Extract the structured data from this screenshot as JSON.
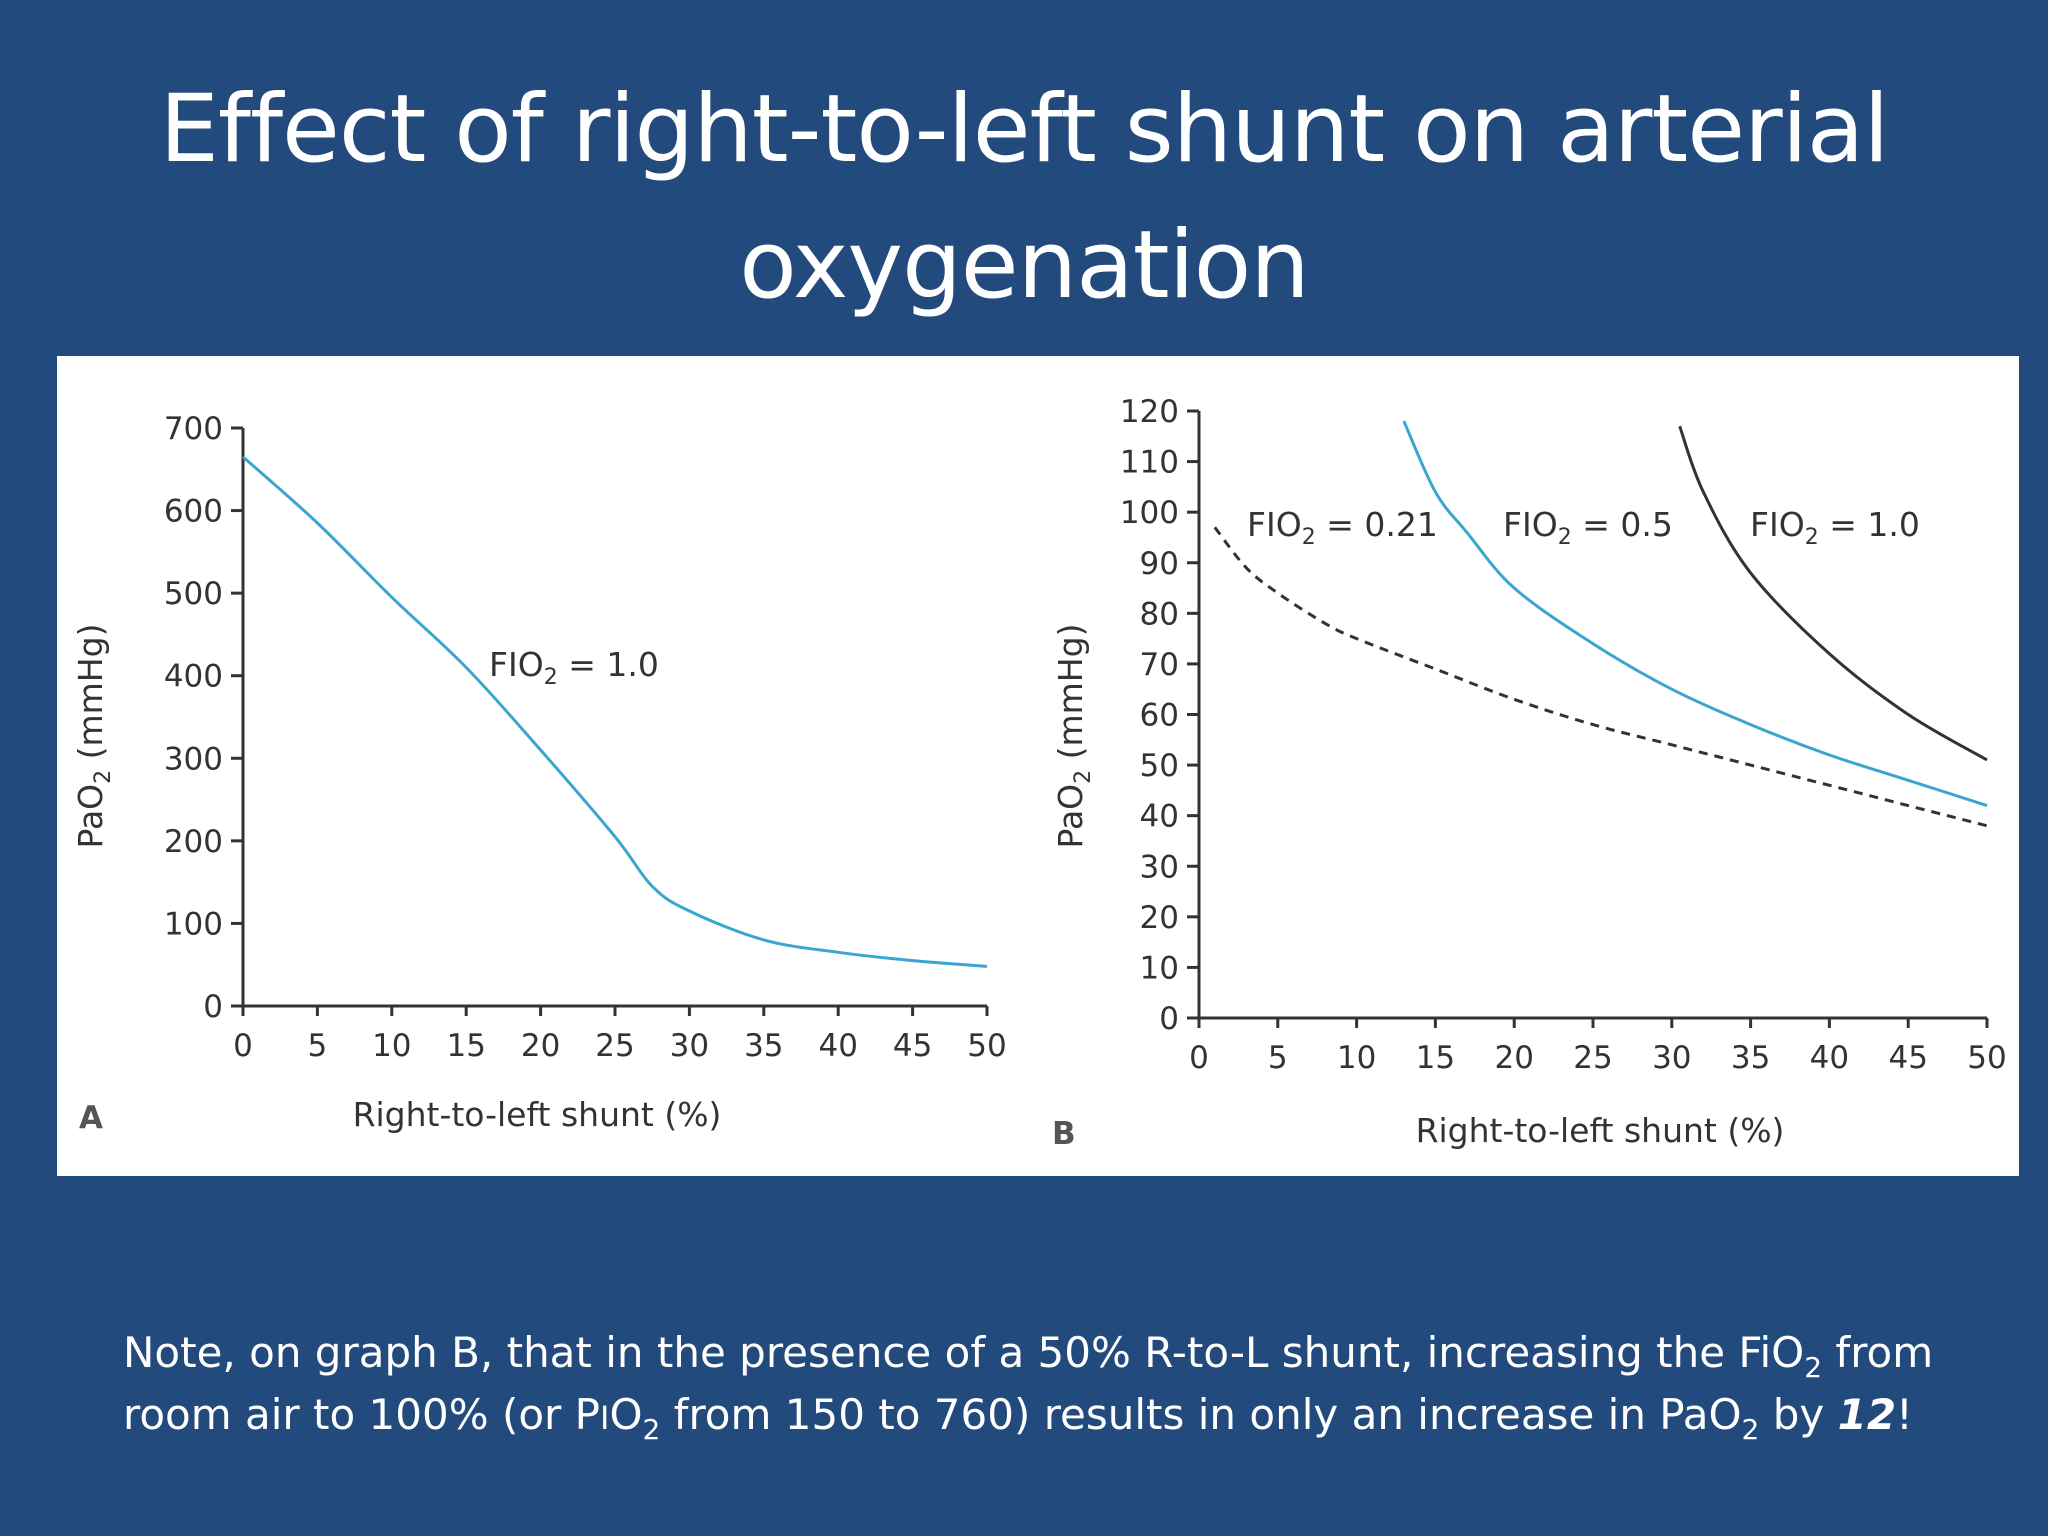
{
  "slide": {
    "title_line1": "Effect of right-to-left shunt on arterial",
    "title_line2": "oxygenation"
  },
  "note": {
    "line1_a": "Note, on graph B, that in the presence of a 50% R-to-L shunt, increasing the FiO",
    "line1_sub": "2",
    "line1_b": " from",
    "line2_a": "room air to 100% (or P",
    "line2_sc": "I",
    "line2_b": "O",
    "line2_sub": "2",
    "line2_c": " from 150 to 760) results in only an increase in PaO",
    "line2_sub2": "2",
    "line2_d": " by ",
    "line2_bold": "12",
    "line2_e": "!"
  },
  "colors": {
    "background": "#224a7c",
    "curve_blue": "#3aa6cf",
    "curve_black": "#333333",
    "axis": "#333333"
  },
  "chart_data": [
    {
      "panel": "A",
      "type": "line",
      "xlabel": "Right-to-left shunt (%)",
      "ylabel": "PaO2 (mmHg)",
      "ylabel_main": "PaO",
      "ylabel_sub": "2",
      "ylabel_unit": " (mmHg)",
      "xlim": [
        0,
        50
      ],
      "ylim": [
        0,
        700
      ],
      "xticks": [
        "0",
        "5",
        "10",
        "15",
        "20",
        "25",
        "30",
        "35",
        "40",
        "45",
        "50"
      ],
      "yticks": [
        "0",
        "100",
        "200",
        "300",
        "400",
        "500",
        "600",
        "700"
      ],
      "grid": false,
      "series": [
        {
          "label_main": "FIO",
          "label_sub": "2",
          "label_rest": " = 1.0",
          "style": "solid",
          "color": "#3aa6cf",
          "x": [
            0,
            5,
            10,
            15,
            20,
            25,
            27.5,
            30,
            35,
            40,
            45,
            50
          ],
          "y": [
            665,
            585,
            495,
            410,
            310,
            205,
            145,
            115,
            80,
            65,
            55,
            48
          ]
        }
      ]
    },
    {
      "panel": "B",
      "type": "line",
      "xlabel": "Right-to-left shunt (%)",
      "ylabel": "PaO2 (mmHg)",
      "ylabel_main": "PaO",
      "ylabel_sub": "2",
      "ylabel_unit": " (mmHg)",
      "xlim": [
        0,
        50
      ],
      "ylim": [
        0,
        120
      ],
      "xticks": [
        "0",
        "5",
        "10",
        "15",
        "20",
        "25",
        "30",
        "35",
        "40",
        "45",
        "50"
      ],
      "yticks": [
        "0",
        "10",
        "20",
        "30",
        "40",
        "50",
        "60",
        "70",
        "80",
        "90",
        "100",
        "110",
        "120"
      ],
      "grid": false,
      "series": [
        {
          "label_main": "FIO",
          "label_sub": "2",
          "label_rest": " = 0.21",
          "style": "dashed",
          "color": "#333333",
          "x": [
            1,
            3,
            5,
            8,
            10,
            15,
            20,
            25,
            30,
            35,
            40,
            45,
            50
          ],
          "y": [
            97,
            89,
            84,
            78,
            75,
            69,
            63,
            58,
            54,
            50,
            46,
            42,
            38
          ]
        },
        {
          "label_main": "FIO",
          "label_sub": "2",
          "label_rest": " = 0.5",
          "style": "solid",
          "color": "#3aa6cf",
          "x": [
            13,
            15,
            17,
            20,
            25,
            30,
            35,
            40,
            45,
            50
          ],
          "y": [
            118,
            104,
            96,
            85,
            74,
            65,
            58,
            52,
            47,
            42
          ]
        },
        {
          "label_main": "FIO",
          "label_sub": "2",
          "label_rest": " = 1.0",
          "style": "solid",
          "color": "#333333",
          "x": [
            30.5,
            32,
            35,
            40,
            45,
            50
          ],
          "y": [
            117,
            104,
            88,
            72,
            60,
            51
          ]
        }
      ]
    }
  ]
}
